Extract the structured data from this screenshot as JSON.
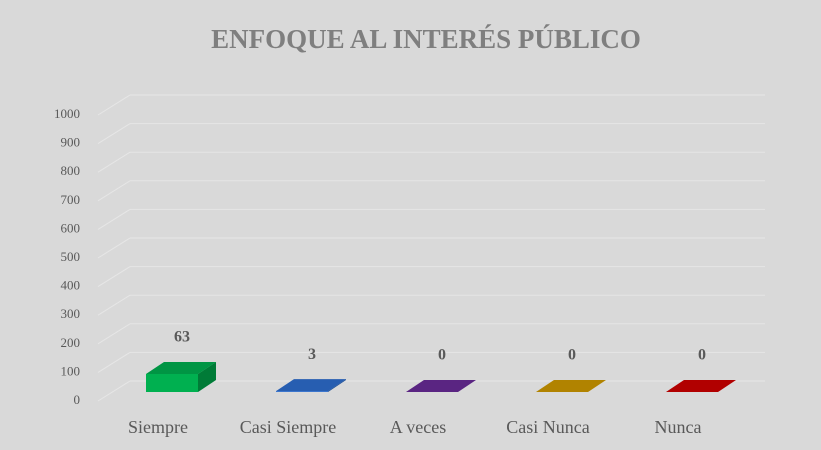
{
  "chart_data": {
    "type": "bar3d",
    "title": "ENFOQUE AL INTERÉS PÚBLICO",
    "categories": [
      "Siempre",
      "Casi Siempre",
      "A veces",
      "Casi Nunca",
      "Nunca"
    ],
    "values": [
      63,
      3,
      0,
      0,
      0
    ],
    "colors": [
      "#00b050",
      "#2e6fd0",
      "#6a2c99",
      "#d09a00",
      "#d00000"
    ],
    "ylim": [
      0,
      1000
    ],
    "yticks": [
      0,
      100,
      200,
      300,
      400,
      500,
      600,
      700,
      800,
      900,
      1000
    ],
    "grid": true
  }
}
